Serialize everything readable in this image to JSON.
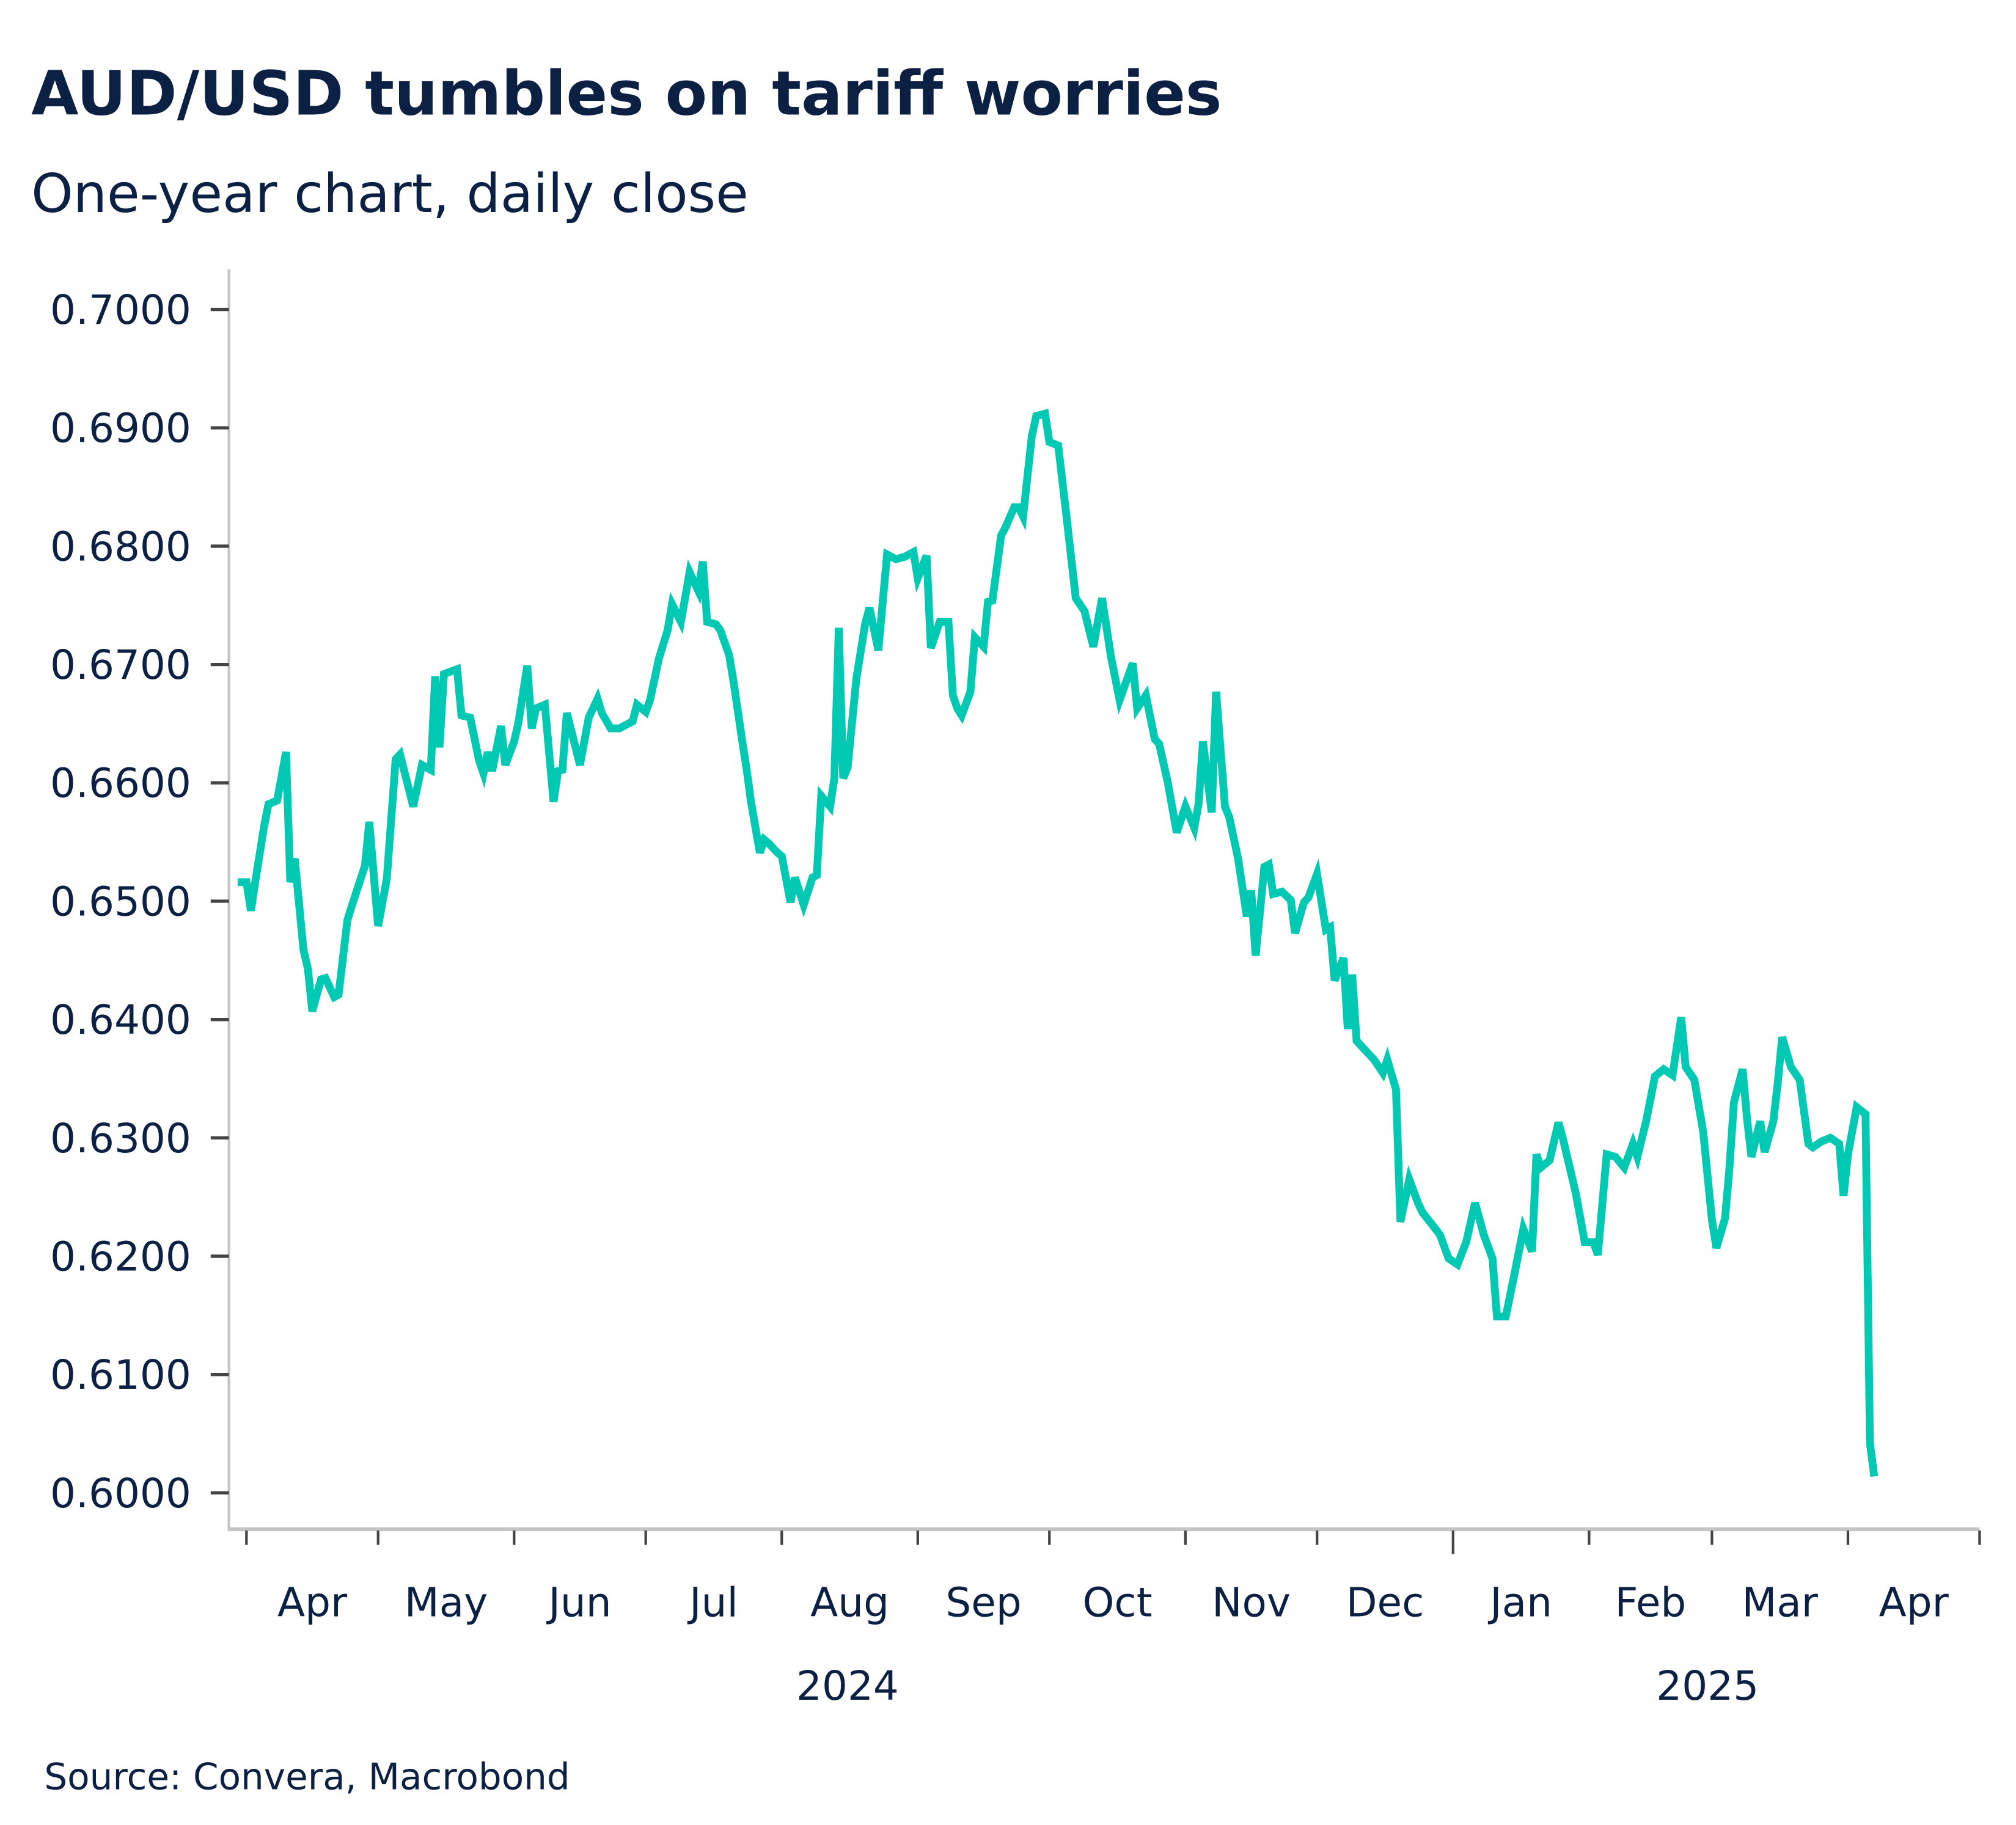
{
  "title": "AUD/USD tumbles on tariff worries",
  "subtitle": "One-year chart, daily close",
  "source": "Source: Convera, Macrobond",
  "colors": {
    "line": "#00c9b3",
    "text": "#0b2042",
    "axis": "#c4c4c4"
  },
  "chart_data": {
    "type": "line",
    "title": "AUD/USD tumbles on tariff worries",
    "subtitle": "One-year chart, daily close",
    "ylim": [
      0.5965,
      0.7035
    ],
    "xlim": [
      "2024-03-28",
      "2025-05-01"
    ],
    "grid": false,
    "y_ticks": [
      "0.7000",
      "0.6900",
      "0.6800",
      "0.6700",
      "0.6600",
      "0.6500",
      "0.6400",
      "0.6300",
      "0.6200",
      "0.6100",
      "0.6000"
    ],
    "y_tick_values": [
      0.7,
      0.69,
      0.68,
      0.67,
      0.66,
      0.65,
      0.64,
      0.63,
      0.62,
      0.61,
      0.6
    ],
    "x_month_ticks": [
      "2024-04-01",
      "2024-05-01",
      "2024-06-01",
      "2024-07-01",
      "2024-08-01",
      "2024-09-01",
      "2024-10-01",
      "2024-11-01",
      "2024-12-01",
      "2025-01-01",
      "2025-02-01",
      "2025-03-01",
      "2025-04-01",
      "2025-05-01"
    ],
    "x_month_labels": [
      "Apr",
      "May",
      "Jun",
      "Jul",
      "Aug",
      "Sep",
      "Oct",
      "Nov",
      "Dec",
      "Jan",
      "Feb",
      "Mar",
      "Apr"
    ],
    "x_year_labels": [
      {
        "label": "2024",
        "at": "2024-08-16"
      },
      {
        "label": "2025",
        "at": "2025-02-28"
      }
    ],
    "series": [
      {
        "color": "#00c9b3",
        "points": [
          [
            "2024-03-30",
            0.6516
          ],
          [
            "2024-04-01",
            0.6516
          ],
          [
            "2024-04-02",
            0.6492
          ],
          [
            "2024-04-03",
            0.6516
          ],
          [
            "2024-04-05",
            0.6563
          ],
          [
            "2024-04-06",
            0.6582
          ],
          [
            "2024-04-08",
            0.6585
          ],
          [
            "2024-04-10",
            0.6626
          ],
          [
            "2024-04-11",
            0.6516
          ],
          [
            "2024-04-12",
            0.6536
          ],
          [
            "2024-04-14",
            0.6459
          ],
          [
            "2024-04-15",
            0.6443
          ],
          [
            "2024-04-16",
            0.6407
          ],
          [
            "2024-04-18",
            0.6434
          ],
          [
            "2024-04-19",
            0.6435
          ],
          [
            "2024-04-21",
            0.6419
          ],
          [
            "2024-04-22",
            0.6421
          ],
          [
            "2024-04-24",
            0.6484
          ],
          [
            "2024-04-25",
            0.6496
          ],
          [
            "2024-04-28",
            0.653
          ],
          [
            "2024-04-29",
            0.6567
          ],
          [
            "2024-05-01",
            0.6479
          ],
          [
            "2024-05-03",
            0.6519
          ],
          [
            "2024-05-05",
            0.662
          ],
          [
            "2024-05-06",
            0.6624
          ],
          [
            "2024-05-09",
            0.658
          ],
          [
            "2024-05-11",
            0.6615
          ],
          [
            "2024-05-13",
            0.6611
          ],
          [
            "2024-05-14",
            0.669
          ],
          [
            "2024-05-15",
            0.663
          ],
          [
            "2024-05-16",
            0.6692
          ],
          [
            "2024-05-19",
            0.6696
          ],
          [
            "2024-05-20",
            0.6657
          ],
          [
            "2024-05-22",
            0.6655
          ],
          [
            "2024-05-24",
            0.6619
          ],
          [
            "2024-05-25",
            0.6608
          ],
          [
            "2024-05-26",
            0.6626
          ],
          [
            "2024-05-27",
            0.661
          ],
          [
            "2024-05-29",
            0.6648
          ],
          [
            "2024-05-30",
            0.6615
          ],
          [
            "2024-06-01",
            0.6635
          ],
          [
            "2024-06-02",
            0.6651
          ],
          [
            "2024-06-04",
            0.6699
          ],
          [
            "2024-06-05",
            0.6646
          ],
          [
            "2024-06-06",
            0.6663
          ],
          [
            "2024-06-08",
            0.6666
          ],
          [
            "2024-06-10",
            0.6584
          ],
          [
            "2024-06-11",
            0.661
          ],
          [
            "2024-06-12",
            0.6611
          ],
          [
            "2024-06-13",
            0.6659
          ],
          [
            "2024-06-16",
            0.6615
          ],
          [
            "2024-06-18",
            0.6655
          ],
          [
            "2024-06-20",
            0.6671
          ],
          [
            "2024-06-21",
            0.6659
          ],
          [
            "2024-06-23",
            0.6646
          ],
          [
            "2024-06-25",
            0.6646
          ],
          [
            "2024-06-28",
            0.6652
          ],
          [
            "2024-06-29",
            0.6666
          ],
          [
            "2024-07-01",
            0.666
          ],
          [
            "2024-07-02",
            0.667
          ],
          [
            "2024-07-04",
            0.6705
          ],
          [
            "2024-07-06",
            0.6729
          ],
          [
            "2024-07-07",
            0.6751
          ],
          [
            "2024-07-09",
            0.6736
          ],
          [
            "2024-07-11",
            0.6778
          ],
          [
            "2024-07-13",
            0.6762
          ],
          [
            "2024-07-14",
            0.6787
          ],
          [
            "2024-07-15",
            0.6736
          ],
          [
            "2024-07-17",
            0.6734
          ],
          [
            "2024-07-18",
            0.6729
          ],
          [
            "2024-07-20",
            0.6708
          ],
          [
            "2024-07-21",
            0.6686
          ],
          [
            "2024-07-23",
            0.6635
          ],
          [
            "2024-07-24",
            0.6611
          ],
          [
            "2024-07-25",
            0.6584
          ],
          [
            "2024-07-27",
            0.6541
          ],
          [
            "2024-07-28",
            0.6552
          ],
          [
            "2024-07-29",
            0.6549
          ],
          [
            "2024-07-31",
            0.6541
          ],
          [
            "2024-08-01",
            0.6538
          ],
          [
            "2024-08-03",
            0.6499
          ],
          [
            "2024-08-04",
            0.652
          ],
          [
            "2024-08-06",
            0.6497
          ],
          [
            "2024-08-08",
            0.652
          ],
          [
            "2024-08-09",
            0.6522
          ],
          [
            "2024-08-10",
            0.6589
          ],
          [
            "2024-08-12",
            0.658
          ],
          [
            "2024-08-13",
            0.6604
          ],
          [
            "2024-08-14",
            0.6731
          ],
          [
            "2024-08-15",
            0.6604
          ],
          [
            "2024-08-16",
            0.6613
          ],
          [
            "2024-08-18",
            0.6688
          ],
          [
            "2024-08-20",
            0.6734
          ],
          [
            "2024-08-21",
            0.6748
          ],
          [
            "2024-08-23",
            0.6712
          ],
          [
            "2024-08-25",
            0.6793
          ],
          [
            "2024-08-27",
            0.6789
          ],
          [
            "2024-08-29",
            0.6791
          ],
          [
            "2024-08-31",
            0.6795
          ],
          [
            "2024-09-01",
            0.6773
          ],
          [
            "2024-09-03",
            0.6792
          ],
          [
            "2024-09-04",
            0.6714
          ],
          [
            "2024-09-06",
            0.6736
          ],
          [
            "2024-09-08",
            0.6736
          ],
          [
            "2024-09-09",
            0.6674
          ],
          [
            "2024-09-10",
            0.6663
          ],
          [
            "2024-09-11",
            0.6657
          ],
          [
            "2024-09-13",
            0.6677
          ],
          [
            "2024-09-14",
            0.6723
          ],
          [
            "2024-09-16",
            0.6715
          ],
          [
            "2024-09-17",
            0.6753
          ],
          [
            "2024-09-18",
            0.6754
          ],
          [
            "2024-09-20",
            0.6809
          ],
          [
            "2024-09-21",
            0.6816
          ],
          [
            "2024-09-23",
            0.6833
          ],
          [
            "2024-09-24",
            0.6833
          ],
          [
            "2024-09-25",
            0.6825
          ],
          [
            "2024-09-27",
            0.6893
          ],
          [
            "2024-09-28",
            0.691
          ],
          [
            "2024-09-30",
            0.6912
          ],
          [
            "2024-10-01",
            0.6888
          ],
          [
            "2024-10-03",
            0.6885
          ],
          [
            "2024-10-05",
            0.6822
          ],
          [
            "2024-10-07",
            0.6756
          ],
          [
            "2024-10-09",
            0.6745
          ],
          [
            "2024-10-11",
            0.6715
          ],
          [
            "2024-10-13",
            0.6756
          ],
          [
            "2024-10-15",
            0.6707
          ],
          [
            "2024-10-17",
            0.667
          ],
          [
            "2024-10-20",
            0.6701
          ],
          [
            "2024-10-21",
            0.6663
          ],
          [
            "2024-10-23",
            0.6674
          ],
          [
            "2024-10-25",
            0.6637
          ],
          [
            "2024-10-26",
            0.6633
          ],
          [
            "2024-10-28",
            0.66
          ],
          [
            "2024-10-30",
            0.6558
          ],
          [
            "2024-11-01",
            0.658
          ],
          [
            "2024-11-03",
            0.6562
          ],
          [
            "2024-11-04",
            0.6582
          ],
          [
            "2024-11-05",
            0.6635
          ],
          [
            "2024-11-07",
            0.6575
          ],
          [
            "2024-11-08",
            0.6677
          ],
          [
            "2024-11-10",
            0.658
          ],
          [
            "2024-11-11",
            0.6571
          ],
          [
            "2024-11-13",
            0.6536
          ],
          [
            "2024-11-15",
            0.6487
          ],
          [
            "2024-11-16",
            0.6509
          ],
          [
            "2024-11-17",
            0.6454
          ],
          [
            "2024-11-19",
            0.6529
          ],
          [
            "2024-11-20",
            0.6531
          ],
          [
            "2024-11-21",
            0.6506
          ],
          [
            "2024-11-23",
            0.6508
          ],
          [
            "2024-11-25",
            0.6501
          ],
          [
            "2024-11-26",
            0.6473
          ],
          [
            "2024-11-28",
            0.6499
          ],
          [
            "2024-11-29",
            0.6503
          ],
          [
            "2024-12-01",
            0.6523
          ],
          [
            "2024-12-03",
            0.6476
          ],
          [
            "2024-12-04",
            0.6478
          ],
          [
            "2024-12-05",
            0.6433
          ],
          [
            "2024-12-07",
            0.6452
          ],
          [
            "2024-12-08",
            0.6392
          ],
          [
            "2024-12-09",
            0.6438
          ],
          [
            "2024-12-10",
            0.6382
          ],
          [
            "2024-12-12",
            0.6374
          ],
          [
            "2024-12-14",
            0.6366
          ],
          [
            "2024-12-16",
            0.6355
          ],
          [
            "2024-12-17",
            0.6366
          ],
          [
            "2024-12-19",
            0.6341
          ],
          [
            "2024-12-20",
            0.6229
          ],
          [
            "2024-12-22",
            0.6265
          ],
          [
            "2024-12-24",
            0.6245
          ],
          [
            "2024-12-25",
            0.6237
          ],
          [
            "2024-12-28",
            0.6223
          ],
          [
            "2024-12-29",
            0.6218
          ],
          [
            "2024-12-31",
            0.6198
          ],
          [
            "2025-01-02",
            0.6193
          ],
          [
            "2025-01-04",
            0.6212
          ],
          [
            "2025-01-06",
            0.6245
          ],
          [
            "2025-01-08",
            0.6218
          ],
          [
            "2025-01-10",
            0.6198
          ],
          [
            "2025-01-11",
            0.6149
          ],
          [
            "2025-01-13",
            0.6149
          ],
          [
            "2025-01-15",
            0.6185
          ],
          [
            "2025-01-17",
            0.6223
          ],
          [
            "2025-01-19",
            0.6204
          ],
          [
            "2025-01-20",
            0.6286
          ],
          [
            "2025-01-21",
            0.6275
          ],
          [
            "2025-01-23",
            0.6281
          ],
          [
            "2025-01-25",
            0.6313
          ],
          [
            "2025-01-26",
            0.63
          ],
          [
            "2025-01-29",
            0.6253
          ],
          [
            "2025-01-31",
            0.6212
          ],
          [
            "2025-02-02",
            0.6212
          ],
          [
            "2025-02-03",
            0.6201
          ],
          [
            "2025-02-05",
            0.6286
          ],
          [
            "2025-02-07",
            0.6284
          ],
          [
            "2025-02-09",
            0.6275
          ],
          [
            "2025-02-11",
            0.6295
          ],
          [
            "2025-02-12",
            0.6284
          ],
          [
            "2025-02-14",
            0.6314
          ],
          [
            "2025-02-16",
            0.6352
          ],
          [
            "2025-02-18",
            0.6358
          ],
          [
            "2025-02-20",
            0.6353
          ],
          [
            "2025-02-22",
            0.6402
          ],
          [
            "2025-02-23",
            0.636
          ],
          [
            "2025-02-25",
            0.6349
          ],
          [
            "2025-02-27",
            0.6305
          ],
          [
            "2025-03-01",
            0.6231
          ],
          [
            "2025-03-02",
            0.6207
          ],
          [
            "2025-03-04",
            0.6232
          ],
          [
            "2025-03-05",
            0.6275
          ],
          [
            "2025-03-06",
            0.633
          ],
          [
            "2025-03-08",
            0.6358
          ],
          [
            "2025-03-09",
            0.6316
          ],
          [
            "2025-03-10",
            0.6284
          ],
          [
            "2025-03-12",
            0.6314
          ],
          [
            "2025-03-13",
            0.6288
          ],
          [
            "2025-03-15",
            0.6314
          ],
          [
            "2025-03-16",
            0.6346
          ],
          [
            "2025-03-17",
            0.6385
          ],
          [
            "2025-03-19",
            0.636
          ],
          [
            "2025-03-21",
            0.6349
          ],
          [
            "2025-03-23",
            0.6295
          ],
          [
            "2025-03-24",
            0.6292
          ],
          [
            "2025-03-26",
            0.6297
          ],
          [
            "2025-03-28",
            0.63
          ],
          [
            "2025-03-30",
            0.6295
          ],
          [
            "2025-03-31",
            0.6251
          ],
          [
            "2025-04-01",
            0.6286
          ],
          [
            "2025-04-03",
            0.6326
          ],
          [
            "2025-04-05",
            0.632
          ],
          [
            "2025-04-06",
            0.6042
          ],
          [
            "2025-04-07",
            0.6014
          ]
        ]
      }
    ]
  }
}
